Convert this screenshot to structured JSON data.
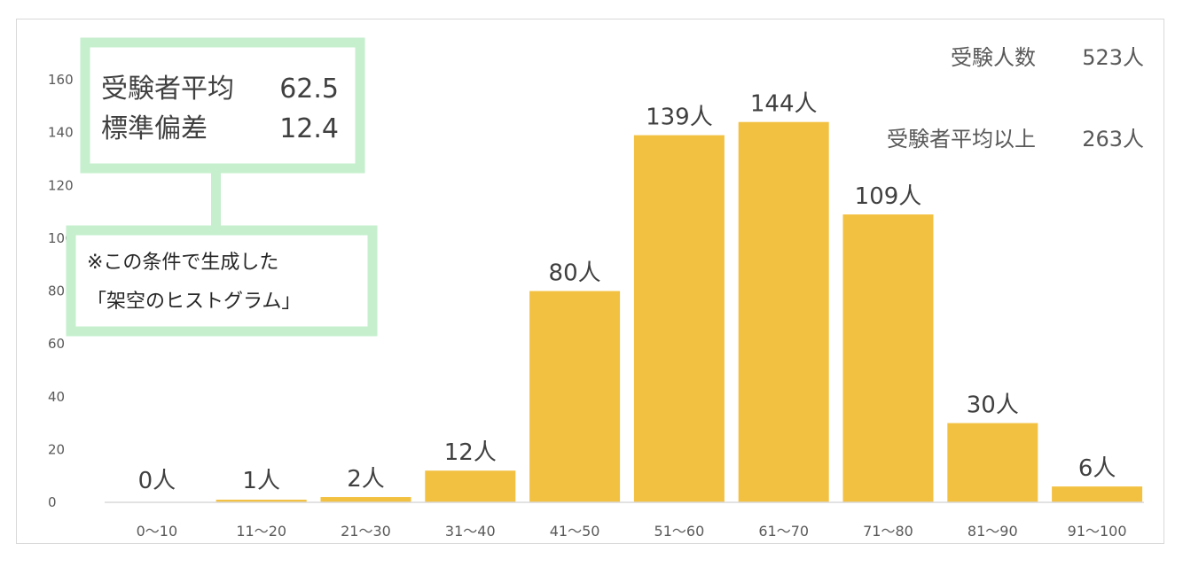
{
  "chart_data": {
    "type": "bar",
    "categories": [
      "0〜10",
      "11〜20",
      "21〜30",
      "31〜40",
      "41〜50",
      "51〜60",
      "61〜70",
      "71〜80",
      "81〜90",
      "91〜100"
    ],
    "values": [
      0,
      1,
      2,
      12,
      80,
      139,
      144,
      109,
      30,
      6
    ],
    "data_labels": [
      "0人",
      "1人",
      "2人",
      "12人",
      "80人",
      "139人",
      "144人",
      "109人",
      "30人",
      "6人"
    ],
    "yticks": [
      "0",
      "20",
      "40",
      "60",
      "80",
      "100",
      "120",
      "140",
      "160"
    ],
    "ylim": [
      0,
      160
    ],
    "bar_color": "#F3C142",
    "grid": false
  },
  "stats": {
    "examinees_label": "受験人数",
    "examinees_value": "523人",
    "above_avg_label": "受験者平均以上",
    "above_avg_value": "263人"
  },
  "info_box": {
    "avg_label": "受験者平均",
    "avg_value": "62.5",
    "sd_label": "標準偏差",
    "sd_value": "12.4",
    "border_color": "#C6EFCE"
  },
  "note_box": {
    "line1": "※この条件で生成した",
    "line2": "「架空のヒストグラム」"
  }
}
